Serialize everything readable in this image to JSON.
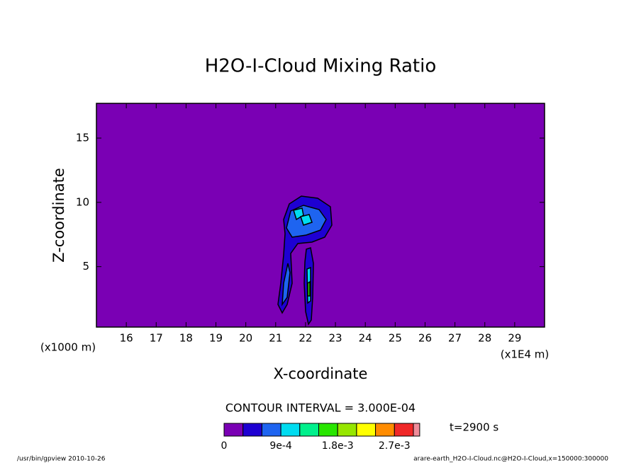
{
  "chart_data": {
    "type": "contour",
    "title": "H2O-I-Cloud Mixing Ratio",
    "x_label": "X-coordinate",
    "y_label": "Z-coordinate",
    "x_unit": "(x1E4 m)",
    "y_unit": "(x1000 m)",
    "xlim": [
      15,
      30
    ],
    "xticks": [
      16,
      17,
      18,
      19,
      20,
      21,
      22,
      23,
      24,
      25,
      26,
      27,
      28,
      29
    ],
    "ylim": [
      0.3,
      17.7
    ],
    "yticks": [
      5,
      10,
      15
    ],
    "contour_interval": "CONTOUR INTERVAL = 3.000E-04",
    "time_label": "t=2900 s",
    "levels": [
      0,
      0.0003,
      0.0006,
      0.0009,
      0.0012,
      0.0015,
      0.0018,
      0.0021,
      0.0024,
      0.0027,
      0.003
    ],
    "colors": [
      "#7a00b4",
      "#1e00d2",
      "#1e64f0",
      "#00dcf0",
      "#00f08c",
      "#28e600",
      "#96e600",
      "#ffff00",
      "#ff8c00",
      "#f02828",
      "#f08c9a"
    ],
    "colorbar_ticks": [
      0,
      {
        "value": 0.0009,
        "label": "9e-4"
      },
      {
        "value": 0.0018,
        "label": "1.8e-3"
      },
      {
        "value": 0.0027,
        "label": "2.7e-3"
      }
    ],
    "footer_left": "/usr/bin/gpview  2010-10-26",
    "footer_right": "arare-earth_H2O-I-Cloud.nc@H2O-I-Cloud,x=150000:300000"
  }
}
